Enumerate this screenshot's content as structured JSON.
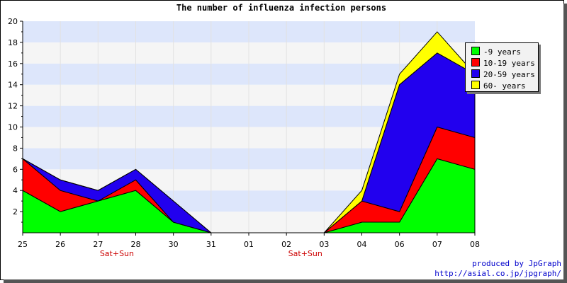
{
  "chart_data": {
    "type": "area",
    "stacked": true,
    "title": "The number of influenza infection persons",
    "categories": [
      "25",
      "26",
      "27",
      "28",
      "30",
      "31",
      "01",
      "02",
      "03",
      "04",
      "06",
      "07",
      "08"
    ],
    "weekend_labels": [
      {
        "after_category": "27",
        "text": "Sat+Sun"
      },
      {
        "after_category": "02",
        "text": "Sat+Sun"
      }
    ],
    "ylim": [
      0,
      20
    ],
    "yticks": [
      2,
      4,
      6,
      8,
      10,
      12,
      14,
      16,
      18,
      20
    ],
    "grid": "horizontal bands",
    "legend_placement": "top-right",
    "series": [
      {
        "name": "-9 years",
        "color": "#00ff00",
        "values": [
          4,
          2,
          3,
          4,
          1,
          0,
          0,
          0,
          0,
          1,
          1,
          7,
          6
        ]
      },
      {
        "name": "10-19 years",
        "color": "#ff0000",
        "values": [
          3,
          2,
          0,
          1,
          0,
          0,
          0,
          0,
          0,
          2,
          1,
          3,
          3
        ]
      },
      {
        "name": "20-59 years",
        "color": "#2200ee",
        "values": [
          0,
          1,
          1,
          1,
          2,
          0,
          0,
          0,
          0,
          0,
          12,
          7,
          6
        ]
      },
      {
        "name": "60- years",
        "color": "#ffff00",
        "values": [
          0,
          0,
          0,
          0,
          0,
          0,
          0,
          0,
          0,
          1,
          1,
          2,
          0
        ]
      }
    ],
    "band_colors": [
      "#f5f5f5",
      "#dde6fb"
    ]
  },
  "credits": {
    "line1": "produced by JpGraph",
    "line2": "http://asial.co.jp/jpgraph/"
  }
}
